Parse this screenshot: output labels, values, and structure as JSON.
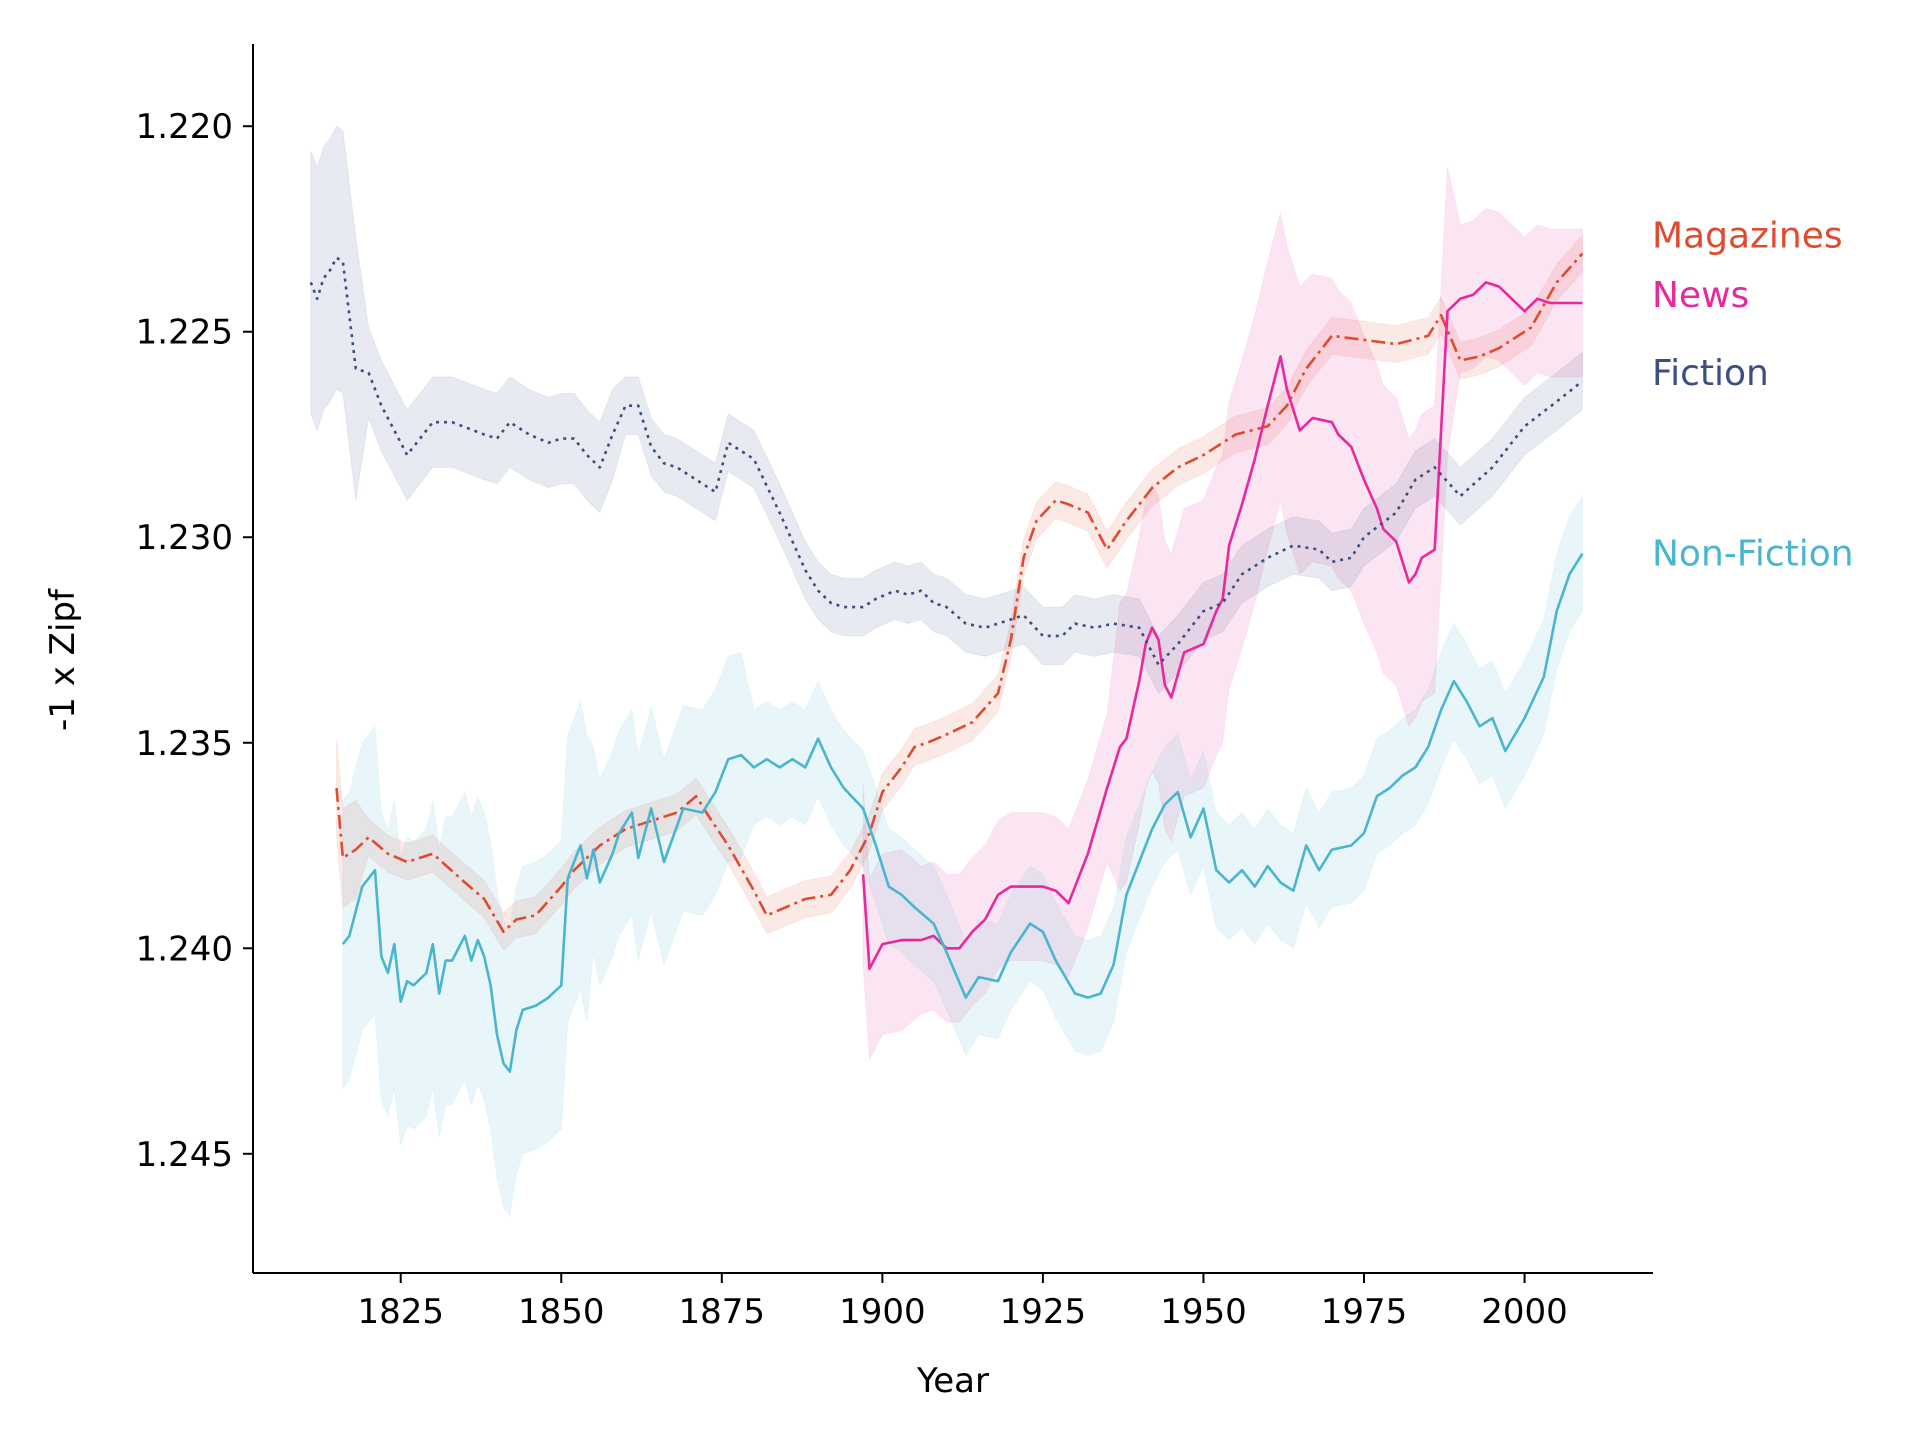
{
  "chart_data": {
    "type": "line",
    "title": "",
    "xlabel": "Year",
    "ylabel": "-1 x Zipf",
    "xlim": [
      1802,
      2020
    ],
    "ylim": [
      1.218,
      1.2479
    ],
    "y_inverted": true,
    "xticks": [
      1825,
      1850,
      1875,
      1900,
      1925,
      1950,
      1975,
      2000
    ],
    "xtick_labels": [
      "1825",
      "1850",
      "1875",
      "1900",
      "1925",
      "1950",
      "1975",
      "2000"
    ],
    "yticks": [
      1.22,
      1.225,
      1.23,
      1.235,
      1.24,
      1.245
    ],
    "ytick_labels": [
      "1.220",
      "1.225",
      "1.230",
      "1.235",
      "1.240",
      "1.245"
    ],
    "grid": false,
    "legend": "direct labels at right end of lines",
    "series": [
      {
        "name": "Magazines",
        "color": "#e04a2f",
        "dash": "dashdot",
        "x": [
          1815,
          1816,
          1818,
          1820,
          1823,
          1826,
          1830,
          1835,
          1838,
          1841,
          1843,
          1846,
          1850,
          1852,
          1856,
          1860,
          1864,
          1868,
          1871,
          1873,
          1876,
          1880,
          1882,
          1885,
          1888,
          1892,
          1895,
          1898,
          1900,
          1903,
          1905,
          1907,
          1910,
          1914,
          1918,
          1920,
          1922,
          1924,
          1927,
          1929,
          1932,
          1935,
          1938,
          1942,
          1946,
          1950,
          1955,
          1960,
          1963,
          1966,
          1970,
          1975,
          1980,
          1985,
          1987,
          1990,
          1993,
          1996,
          1999,
          2001,
          2005,
          2009
        ],
        "y": [
          1.2361,
          1.2378,
          1.2376,
          1.2373,
          1.2377,
          1.2379,
          1.2377,
          1.2384,
          1.2388,
          1.2396,
          1.2393,
          1.2392,
          1.2385,
          1.2381,
          1.2375,
          1.2371,
          1.2369,
          1.2367,
          1.2363,
          1.2368,
          1.2375,
          1.2386,
          1.2392,
          1.239,
          1.2388,
          1.2387,
          1.2381,
          1.2372,
          1.2362,
          1.2356,
          1.2351,
          1.235,
          1.2348,
          1.2345,
          1.2338,
          1.2325,
          1.2305,
          1.2296,
          1.2291,
          1.2292,
          1.2294,
          1.2303,
          1.2296,
          1.2288,
          1.2283,
          1.228,
          1.2275,
          1.2273,
          1.2268,
          1.2259,
          1.2251,
          1.2252,
          1.2253,
          1.2251,
          1.2246,
          1.2257,
          1.2256,
          1.2254,
          1.2251,
          1.2249,
          1.2238,
          1.2231
        ]
      },
      {
        "name": "News",
        "color": "#e8289c",
        "dash": "solid",
        "x": [
          1897,
          1898,
          1900,
          1903,
          1906,
          1908,
          1910,
          1912,
          1914,
          1916,
          1918,
          1920,
          1923,
          1925,
          1927,
          1929,
          1932,
          1935,
          1937,
          1938,
          1940,
          1941,
          1942,
          1943,
          1944,
          1945,
          1947,
          1950,
          1952,
          1953,
          1954,
          1956,
          1958,
          1960,
          1962,
          1963,
          1965,
          1967,
          1970,
          1971,
          1973,
          1975,
          1977,
          1978,
          1980,
          1982,
          1983,
          1984,
          1986,
          1988,
          1990,
          1992,
          1994,
          1996,
          1998,
          2000,
          2002,
          2004,
          2006,
          2008,
          2009
        ],
        "y": [
          1.2382,
          1.2405,
          1.2399,
          1.2398,
          1.2398,
          1.2397,
          1.24,
          1.24,
          1.2396,
          1.2393,
          1.2387,
          1.2385,
          1.2385,
          1.2385,
          1.2386,
          1.2389,
          1.2377,
          1.2361,
          1.2351,
          1.2349,
          1.2335,
          1.2326,
          1.2322,
          1.2325,
          1.2336,
          1.2339,
          1.2328,
          1.2326,
          1.2318,
          1.2315,
          1.2302,
          1.2292,
          1.2281,
          1.2268,
          1.2256,
          1.2264,
          1.2274,
          1.2271,
          1.2272,
          1.2275,
          1.2278,
          1.2286,
          1.2293,
          1.2298,
          1.2301,
          1.2311,
          1.2309,
          1.2305,
          1.2303,
          1.2245,
          1.2242,
          1.2241,
          1.2238,
          1.2239,
          1.2242,
          1.2245,
          1.2242,
          1.2243,
          1.2243,
          1.2243,
          1.2243
        ]
      },
      {
        "name": "Fiction",
        "color": "#3b4f82",
        "dash": "dotted",
        "x": [
          1811,
          1812,
          1813,
          1814,
          1815,
          1816,
          1818,
          1820,
          1822,
          1826,
          1828,
          1830,
          1833,
          1838,
          1840,
          1842,
          1845,
          1848,
          1850,
          1852,
          1854,
          1856,
          1858,
          1860,
          1862,
          1864,
          1866,
          1868,
          1870,
          1874,
          1876,
          1880,
          1884,
          1888,
          1890,
          1892,
          1894,
          1897,
          1899,
          1902,
          1904,
          1906,
          1908,
          1910,
          1913,
          1916,
          1918,
          1922,
          1925,
          1928,
          1930,
          1933,
          1936,
          1940,
          1943,
          1946,
          1950,
          1953,
          1956,
          1960,
          1964,
          1968,
          1970,
          1973,
          1975,
          1980,
          1983,
          1986,
          1990,
          1995,
          2000,
          2005,
          2009
        ],
        "y": [
          1.2238,
          1.2242,
          1.2237,
          1.2235,
          1.2232,
          1.2233,
          1.2259,
          1.226,
          1.2268,
          1.228,
          1.2276,
          1.2272,
          1.2272,
          1.2275,
          1.2276,
          1.2272,
          1.2275,
          1.2277,
          1.2276,
          1.2276,
          1.228,
          1.2283,
          1.2275,
          1.2268,
          1.2268,
          1.2278,
          1.2282,
          1.2283,
          1.2285,
          1.2289,
          1.2277,
          1.2281,
          1.2294,
          1.2308,
          1.2313,
          1.2316,
          1.2317,
          1.2317,
          1.2315,
          1.2313,
          1.2314,
          1.2313,
          1.2316,
          1.2317,
          1.2321,
          1.2322,
          1.2321,
          1.2319,
          1.2324,
          1.2324,
          1.2321,
          1.2322,
          1.2321,
          1.2322,
          1.2331,
          1.2326,
          1.2318,
          1.2316,
          1.2309,
          1.2305,
          1.2302,
          1.2303,
          1.2306,
          1.2305,
          1.23,
          1.2294,
          1.2286,
          1.2283,
          1.229,
          1.2283,
          1.2273,
          1.2267,
          1.2262
        ]
      },
      {
        "name": "Non-Fiction",
        "color": "#4ab5cf",
        "dash": "solid",
        "x": [
          1816,
          1817,
          1819,
          1821,
          1822,
          1823,
          1824,
          1825,
          1826,
          1827,
          1829,
          1830,
          1831,
          1832,
          1833,
          1835,
          1836,
          1837,
          1838,
          1839,
          1840,
          1841,
          1842,
          1843,
          1844,
          1846,
          1848,
          1850,
          1851,
          1853,
          1854,
          1855,
          1856,
          1858,
          1859,
          1861,
          1862,
          1864,
          1866,
          1869,
          1872,
          1874,
          1876,
          1878,
          1880,
          1882,
          1884,
          1886,
          1888,
          1890,
          1892,
          1894,
          1897,
          1899,
          1901,
          1903,
          1905,
          1908,
          1910,
          1913,
          1915,
          1918,
          1920,
          1923,
          1925,
          1927,
          1930,
          1932,
          1934,
          1936,
          1938,
          1940,
          1942,
          1944,
          1946,
          1948,
          1950,
          1952,
          1954,
          1956,
          1958,
          1960,
          1962,
          1964,
          1966,
          1968,
          1970,
          1973,
          1975,
          1977,
          1979,
          1981,
          1983,
          1985,
          1987,
          1989,
          1991,
          1993,
          1995,
          1997,
          2000,
          2003,
          2005,
          2007,
          2009
        ],
        "y": [
          1.2399,
          1.2397,
          1.2385,
          1.2381,
          1.2402,
          1.2406,
          1.2399,
          1.2413,
          1.2408,
          1.2409,
          1.2406,
          1.2399,
          1.2411,
          1.2403,
          1.2403,
          1.2397,
          1.2403,
          1.2398,
          1.2402,
          1.2409,
          1.2421,
          1.2428,
          1.243,
          1.242,
          1.2415,
          1.2414,
          1.2412,
          1.2409,
          1.2383,
          1.2375,
          1.2383,
          1.2376,
          1.2384,
          1.2377,
          1.2372,
          1.2367,
          1.2378,
          1.2366,
          1.2379,
          1.2366,
          1.2367,
          1.2362,
          1.2354,
          1.2353,
          1.2356,
          1.2354,
          1.2356,
          1.2354,
          1.2356,
          1.2349,
          1.2356,
          1.2361,
          1.2366,
          1.2375,
          1.2385,
          1.2387,
          1.239,
          1.2394,
          1.2401,
          1.2412,
          1.2407,
          1.2408,
          1.2401,
          1.2394,
          1.2396,
          1.2403,
          1.2411,
          1.2412,
          1.2411,
          1.2404,
          1.2387,
          1.2379,
          1.2371,
          1.2365,
          1.2362,
          1.2373,
          1.2366,
          1.2381,
          1.2384,
          1.2381,
          1.2385,
          1.238,
          1.2384,
          1.2386,
          1.2375,
          1.2381,
          1.2376,
          1.2375,
          1.2372,
          1.2363,
          1.2361,
          1.2358,
          1.2356,
          1.2351,
          1.2342,
          1.2335,
          1.234,
          1.2346,
          1.2344,
          1.2352,
          1.2344,
          1.2334,
          1.2318,
          1.2309,
          1.2304
        ]
      }
    ],
    "confidence_bands": true
  }
}
